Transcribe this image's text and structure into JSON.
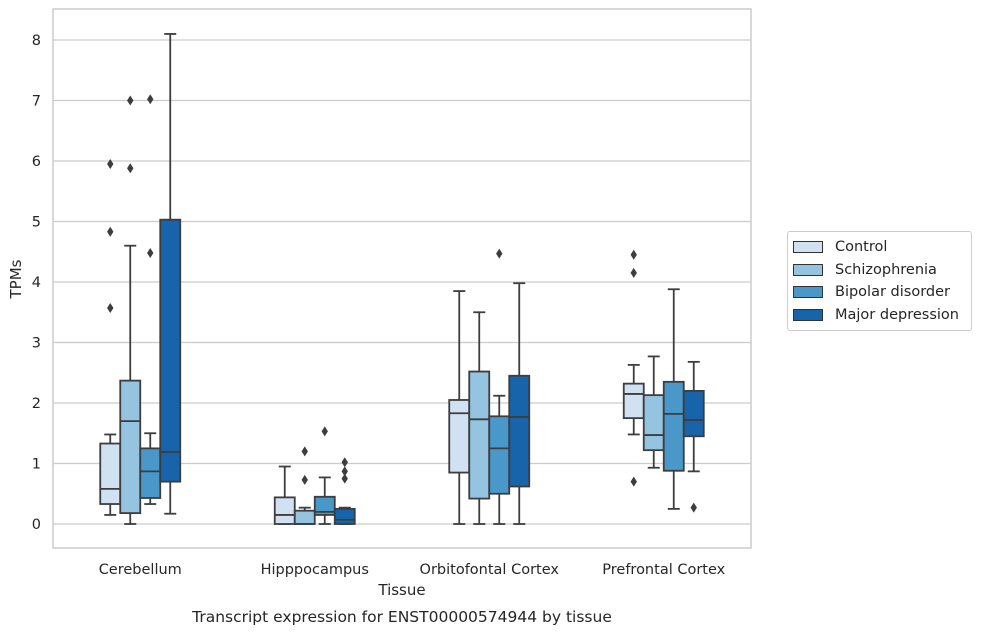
{
  "chart_data": {
    "type": "box",
    "title": "Transcript expression for ENST00000574944 by tissue",
    "xlabel": "Tissue",
    "ylabel": "TPMs",
    "ylim": [
      -0.4,
      8.5
    ],
    "yticks": [
      0,
      1,
      2,
      3,
      4,
      5,
      6,
      7,
      8
    ],
    "grid": "horizontal",
    "legend_position": "right",
    "categories": [
      "Cerebellum",
      "Hipppocampus",
      "Orbitofontal Cortex",
      "Prefrontal Cortex"
    ],
    "series": [
      {
        "name": "Control",
        "color": "#d0e1f2",
        "boxes": [
          {
            "whislo": 0.15,
            "q1": 0.33,
            "med": 0.58,
            "q3": 1.33,
            "whishi": 1.48,
            "fliers": [
              3.57,
              4.83,
              5.95
            ]
          },
          {
            "whislo": 0.0,
            "q1": 0.0,
            "med": 0.15,
            "q3": 0.44,
            "whishi": 0.95,
            "fliers": []
          },
          {
            "whislo": 0.0,
            "q1": 0.85,
            "med": 1.83,
            "q3": 2.05,
            "whishi": 3.85,
            "fliers": []
          },
          {
            "whislo": 1.48,
            "q1": 1.75,
            "med": 2.15,
            "q3": 2.32,
            "whishi": 2.63,
            "fliers": [
              0.7,
              4.15,
              4.45
            ]
          }
        ]
      },
      {
        "name": "Schizophrenia",
        "color": "#94c4df",
        "boxes": [
          {
            "whislo": 0.0,
            "q1": 0.18,
            "med": 1.7,
            "q3": 2.37,
            "whishi": 4.6,
            "fliers": [
              5.88,
              7.0
            ]
          },
          {
            "whislo": 0.0,
            "q1": 0.0,
            "med": 0.0,
            "q3": 0.22,
            "whishi": 0.27,
            "fliers": [
              0.73,
              1.2
            ]
          },
          {
            "whislo": 0.0,
            "q1": 0.42,
            "med": 1.73,
            "q3": 2.52,
            "whishi": 3.5,
            "fliers": []
          },
          {
            "whislo": 0.93,
            "q1": 1.22,
            "med": 1.47,
            "q3": 2.13,
            "whishi": 2.77,
            "fliers": []
          }
        ]
      },
      {
        "name": "Bipolar disorder",
        "color": "#4a98c9",
        "boxes": [
          {
            "whislo": 0.33,
            "q1": 0.43,
            "med": 0.87,
            "q3": 1.25,
            "whishi": 1.5,
            "fliers": [
              4.48,
              7.02
            ]
          },
          {
            "whislo": 0.0,
            "q1": 0.15,
            "med": 0.2,
            "q3": 0.45,
            "whishi": 0.77,
            "fliers": [
              1.53
            ]
          },
          {
            "whislo": 0.0,
            "q1": 0.5,
            "med": 1.25,
            "q3": 1.78,
            "whishi": 2.12,
            "fliers": [
              4.47
            ]
          },
          {
            "whislo": 0.25,
            "q1": 0.88,
            "med": 1.82,
            "q3": 2.35,
            "whishi": 3.88,
            "fliers": []
          }
        ]
      },
      {
        "name": "Major depression",
        "color": "#1764ab",
        "boxes": [
          {
            "whislo": 0.17,
            "q1": 0.7,
            "med": 1.19,
            "q3": 5.03,
            "whishi": 8.1,
            "fliers": []
          },
          {
            "whislo": 0.0,
            "q1": 0.0,
            "med": 0.07,
            "q3": 0.25,
            "whishi": 0.27,
            "fliers": [
              0.75,
              0.87,
              1.02
            ]
          },
          {
            "whislo": 0.0,
            "q1": 0.62,
            "med": 1.77,
            "q3": 2.45,
            "whishi": 3.98,
            "fliers": []
          },
          {
            "whislo": 0.87,
            "q1": 1.45,
            "med": 1.72,
            "q3": 2.2,
            "whishi": 2.68,
            "fliers": [
              0.27
            ]
          }
        ]
      }
    ]
  }
}
